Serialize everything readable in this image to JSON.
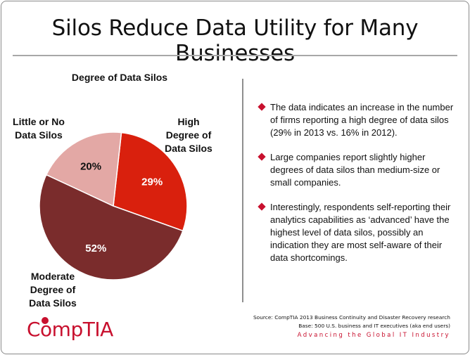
{
  "slide": {
    "title": "Silos Reduce Data Utility for Many Businesses",
    "bullets": [
      "The data indicates an increase in the number of firms reporting a high degree of data silos (29% in 2013 vs. 16% in 2012).",
      "Large companies report slightly higher degrees of data silos than medium-size or small companies.",
      "Interestingly, respondents self-reporting their analytics capabilities as ‘advanced’ have the highest level of data silos, possibly an indication they are most self-aware of their data shortcomings."
    ],
    "source_line1": "Source: CompTIA 2013 Business Continuity and Disaster Recovery research",
    "source_line2": "Base: 500 U.S. business and IT executives (aka end users)",
    "tagline": "Advancing the Global IT Industry",
    "logo_text": "CompTIA"
  },
  "colors": {
    "accent": "#c8102e",
    "pie_high": "#d9200d",
    "pie_moderate": "#7a2c2c",
    "pie_little": "#e3a8a5",
    "bullet_icon": "#c8102e"
  },
  "icons": {
    "bullet": "red-diamond-icon"
  },
  "chart_data": {
    "type": "pie",
    "title": "Degree of Data Silos",
    "slices": [
      {
        "name": "High Degree of Data Silos",
        "value": 29,
        "label": "29%",
        "lines": [
          "High",
          "Degree of",
          "Data Silos"
        ]
      },
      {
        "name": "Moderate Degree of Data Silos",
        "value": 52,
        "label": "52%",
        "lines": [
          "Moderate",
          "Degree of",
          "Data Silos"
        ]
      },
      {
        "name": "Little or No Data Silos",
        "value": 20,
        "label": "20%",
        "lines": [
          "Little or No",
          "Data Silos"
        ]
      }
    ]
  }
}
